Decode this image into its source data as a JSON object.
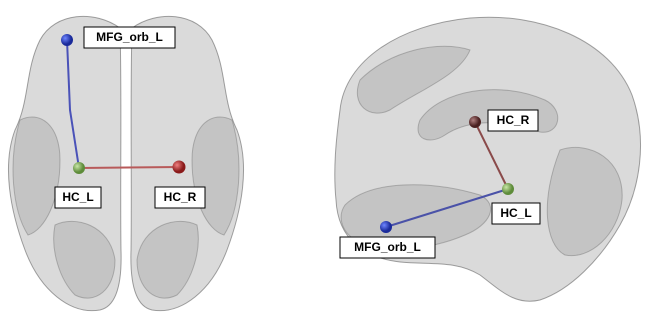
{
  "views": [
    {
      "nodes": [
        {
          "label": "MFG_orb_L"
        },
        {
          "label": "HC_L"
        },
        {
          "label": "HC_R"
        }
      ]
    },
    {
      "nodes": [
        {
          "label": "HC_R"
        },
        {
          "label": "HC_L"
        },
        {
          "label": "MFG_orb_L"
        }
      ]
    }
  ]
}
